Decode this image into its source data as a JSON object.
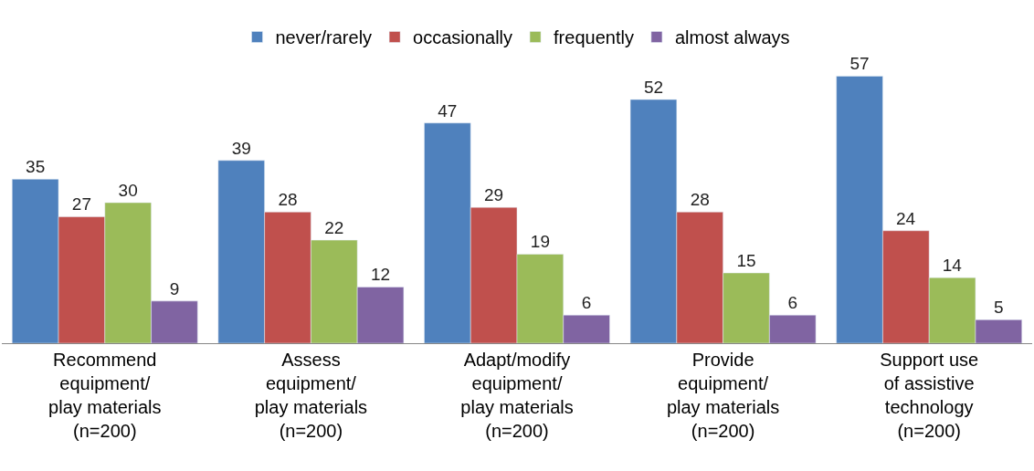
{
  "chart_data": {
    "type": "bar",
    "categories": [
      "Recommend\nequipment/\nplay materials\n(n=200)",
      "Assess\nequipment/\nplay materials\n(n=200)",
      "Adapt/modify\nequipment/\nplay materials\n(n=200)",
      "Provide\nequipment/\nplay materials\n(n=200)",
      "Support use\nof assistive\ntechnology\n(n=200)"
    ],
    "series": [
      {
        "name": "never/rarely",
        "color": "#4f81bd",
        "values": [
          35,
          39,
          47,
          52,
          57
        ]
      },
      {
        "name": "occasionally",
        "color": "#c0504d",
        "values": [
          27,
          28,
          29,
          28,
          24
        ]
      },
      {
        "name": "frequently",
        "color": "#9bbb59",
        "values": [
          30,
          22,
          19,
          15,
          14
        ]
      },
      {
        "name": "almost always",
        "color": "#8064a2",
        "values": [
          9,
          12,
          6,
          6,
          5
        ]
      }
    ],
    "data_labels": true,
    "legend": "top"
  }
}
